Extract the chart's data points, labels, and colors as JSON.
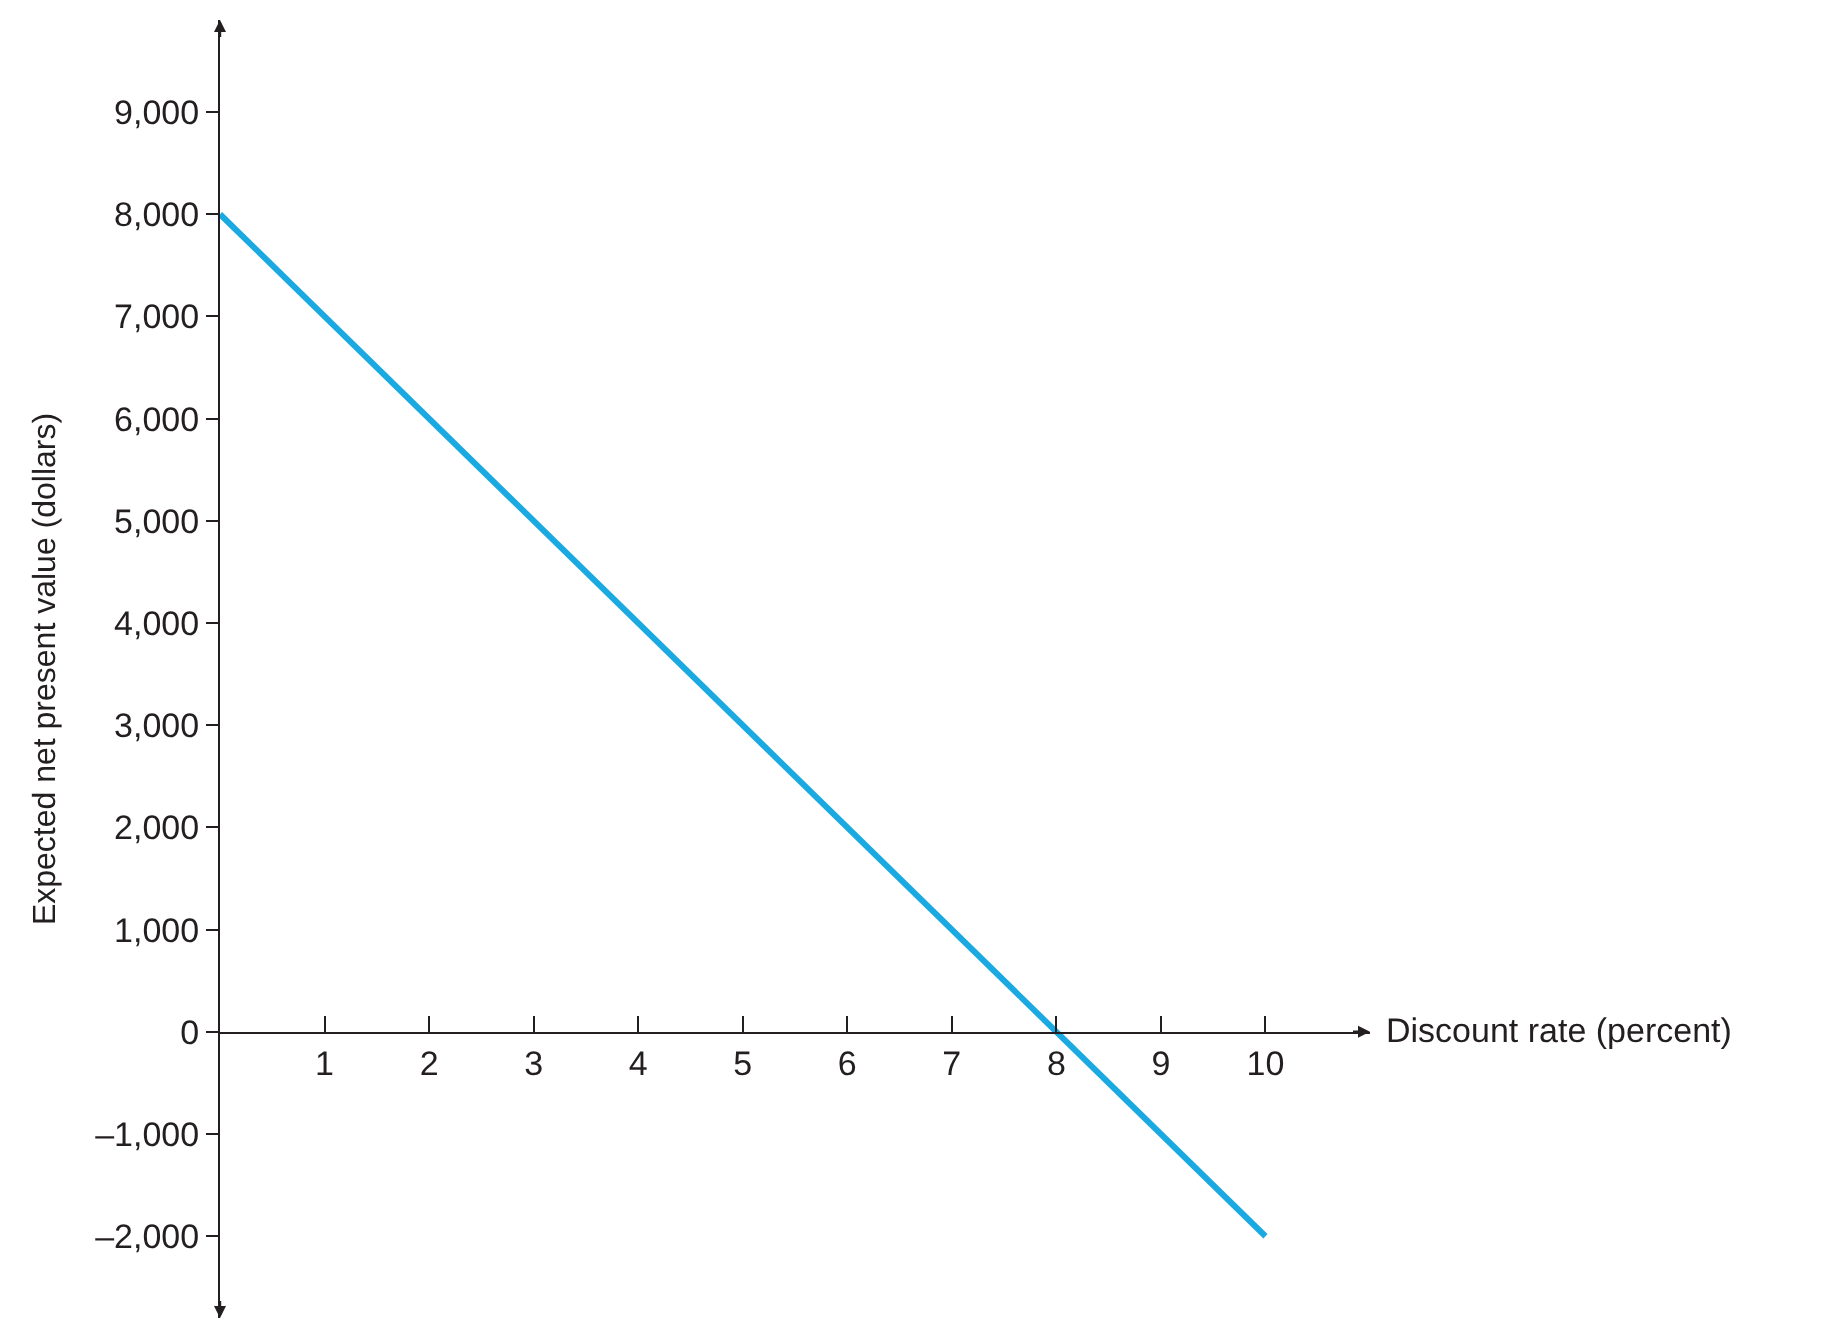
{
  "chart_data": {
    "type": "line",
    "xlabel": "Discount rate (percent)",
    "ylabel": "Expected net present value (dollars)",
    "x": [
      0,
      10
    ],
    "series": [
      {
        "color": "#1ba9e1",
        "values": [
          8000,
          -2000
        ]
      }
    ],
    "xlim": [
      0,
      11
    ],
    "ylim": [
      -2800,
      9900
    ],
    "xticks": [
      1,
      2,
      3,
      4,
      5,
      6,
      7,
      8,
      9,
      10
    ],
    "yticks": [
      {
        "value": -2000,
        "label": "–2,000"
      },
      {
        "value": -1000,
        "label": "–1,000"
      },
      0,
      {
        "value": 1000,
        "label": "1,000"
      },
      {
        "value": 2000,
        "label": "2,000"
      },
      {
        "value": 3000,
        "label": "3,000"
      },
      {
        "value": 4000,
        "label": "4,000"
      },
      {
        "value": 5000,
        "label": "5,000"
      },
      {
        "value": 6000,
        "label": "6,000"
      },
      {
        "value": 7000,
        "label": "7,000"
      },
      {
        "value": 8000,
        "label": "8,000"
      },
      {
        "value": 9000,
        "label": "9,000"
      }
    ],
    "marker": "none",
    "line_style": "solid"
  }
}
